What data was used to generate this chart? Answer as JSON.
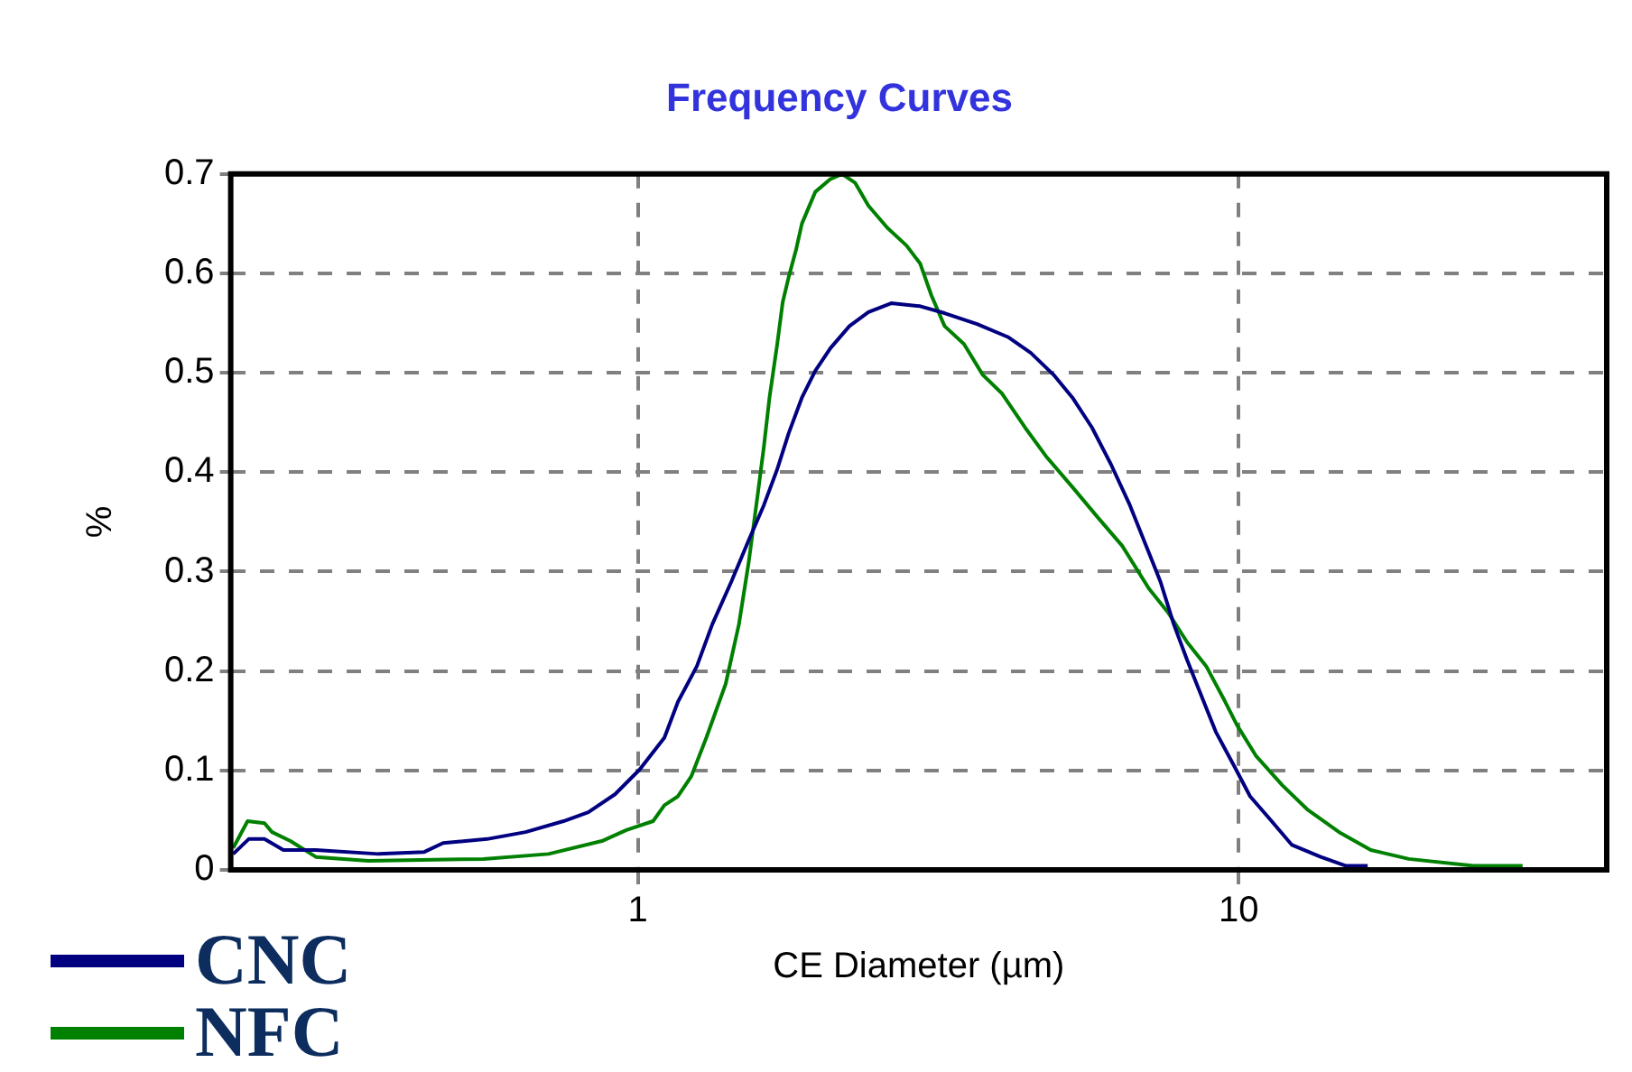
{
  "chart_data": {
    "type": "line",
    "title": "Frequency Curves",
    "xlabel": "CE Diameter (µm)",
    "ylabel": "%",
    "log": "x",
    "xlim": [
      0.21,
      41
    ],
    "xticks": [
      1,
      10
    ],
    "ylim": [
      0,
      0.7
    ],
    "yticks": [
      0,
      0.1,
      0.2,
      0.3,
      0.4,
      0.5,
      0.6,
      0.7
    ],
    "grid": true,
    "legend": "bottom left",
    "marker": "none",
    "line_style": "solid",
    "series": [
      {
        "name": "CNC",
        "color": "#000080",
        "x": [
          0.212,
          0.225,
          0.239,
          0.257,
          0.291,
          0.37,
          0.441,
          0.474,
          0.561,
          0.65,
          0.752,
          0.827,
          0.916,
          1.007,
          1.107,
          1.166,
          1.254,
          1.33,
          1.431,
          1.528,
          1.621,
          1.706,
          1.782,
          1.875,
          1.974,
          2.093,
          2.25,
          2.42,
          2.64,
          2.95,
          3.24,
          3.67,
          4.13,
          4.51,
          4.92,
          5.29,
          5.7,
          6.13,
          6.59,
          7.09,
          7.41,
          7.8,
          8.21,
          8.58,
          9.16,
          9.86,
          10.45,
          11.24,
          12.27,
          13.7,
          15.1,
          16.4
        ],
        "values": [
          0.016,
          0.031,
          0.031,
          0.02,
          0.02,
          0.016,
          0.018,
          0.027,
          0.031,
          0.038,
          0.049,
          0.058,
          0.076,
          0.101,
          0.133,
          0.169,
          0.205,
          0.247,
          0.29,
          0.331,
          0.367,
          0.403,
          0.439,
          0.475,
          0.502,
          0.525,
          0.547,
          0.561,
          0.57,
          0.567,
          0.56,
          0.549,
          0.536,
          0.52,
          0.498,
          0.475,
          0.445,
          0.408,
          0.367,
          0.319,
          0.29,
          0.247,
          0.211,
          0.182,
          0.139,
          0.103,
          0.074,
          0.052,
          0.025,
          0.013,
          0.004,
          0.004
        ]
      },
      {
        "name": "NFC",
        "color": "#008000",
        "x": [
          0.212,
          0.224,
          0.239,
          0.246,
          0.264,
          0.291,
          0.356,
          0.553,
          0.71,
          0.871,
          0.957,
          1.06,
          1.107,
          1.166,
          1.227,
          1.3,
          1.4,
          1.473,
          1.528,
          1.585,
          1.621,
          1.656,
          1.706,
          1.742,
          1.782,
          1.834,
          1.875,
          1.974,
          2.093,
          2.187,
          2.3,
          2.42,
          2.6,
          2.8,
          2.95,
          3.08,
          3.24,
          3.49,
          3.75,
          4.04,
          4.41,
          4.78,
          5.29,
          5.82,
          6.4,
          7.09,
          7.63,
          8.21,
          8.83,
          9.5,
          9.93,
          10.68,
          11.83,
          13.0,
          14.7,
          16.6,
          19.2,
          24.6,
          29.7
        ],
        "values": [
          0.022,
          0.049,
          0.047,
          0.038,
          0.029,
          0.013,
          0.009,
          0.011,
          0.016,
          0.029,
          0.04,
          0.049,
          0.065,
          0.074,
          0.094,
          0.133,
          0.187,
          0.247,
          0.308,
          0.38,
          0.426,
          0.475,
          0.529,
          0.571,
          0.596,
          0.624,
          0.65,
          0.682,
          0.695,
          0.7,
          0.691,
          0.668,
          0.646,
          0.628,
          0.61,
          0.578,
          0.547,
          0.529,
          0.498,
          0.479,
          0.445,
          0.416,
          0.385,
          0.355,
          0.326,
          0.283,
          0.259,
          0.229,
          0.205,
          0.169,
          0.146,
          0.115,
          0.085,
          0.061,
          0.038,
          0.02,
          0.011,
          0.004,
          0.004
        ]
      }
    ]
  }
}
